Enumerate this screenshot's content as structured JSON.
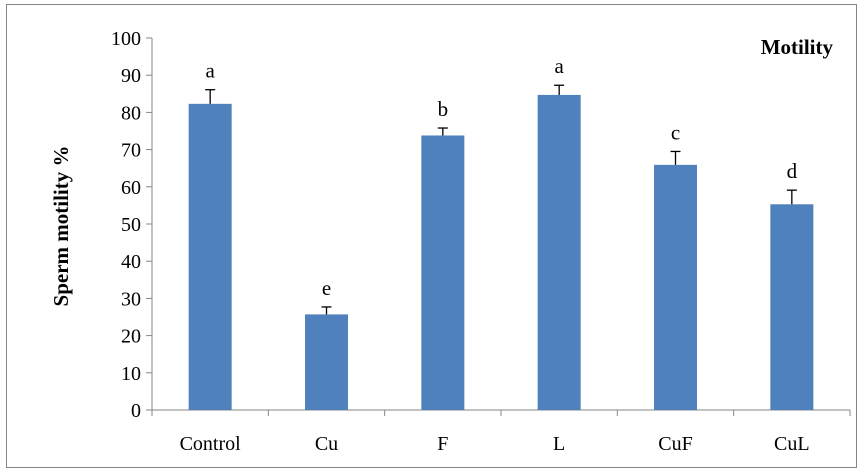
{
  "chart_data": {
    "type": "bar",
    "title": "Motility",
    "xlabel": "",
    "ylabel": "Sperm motility %",
    "ylim": [
      0,
      100
    ],
    "yticks": [
      0,
      10,
      20,
      30,
      40,
      50,
      60,
      70,
      80,
      90,
      100
    ],
    "categories": [
      "Control",
      "Cu",
      "F",
      "L",
      "CuF",
      "CuL"
    ],
    "values": [
      82.3,
      25.7,
      73.8,
      84.7,
      65.9,
      55.3
    ],
    "errors": [
      3.8,
      2.0,
      2.0,
      2.6,
      3.6,
      3.8
    ],
    "significance_labels": [
      "a",
      "e",
      "b",
      "a",
      "c",
      "d"
    ],
    "legend": "none",
    "grid": false,
    "colors": {
      "bar": "#4f81bd",
      "axis": "#868686",
      "frame": "#868686"
    }
  }
}
